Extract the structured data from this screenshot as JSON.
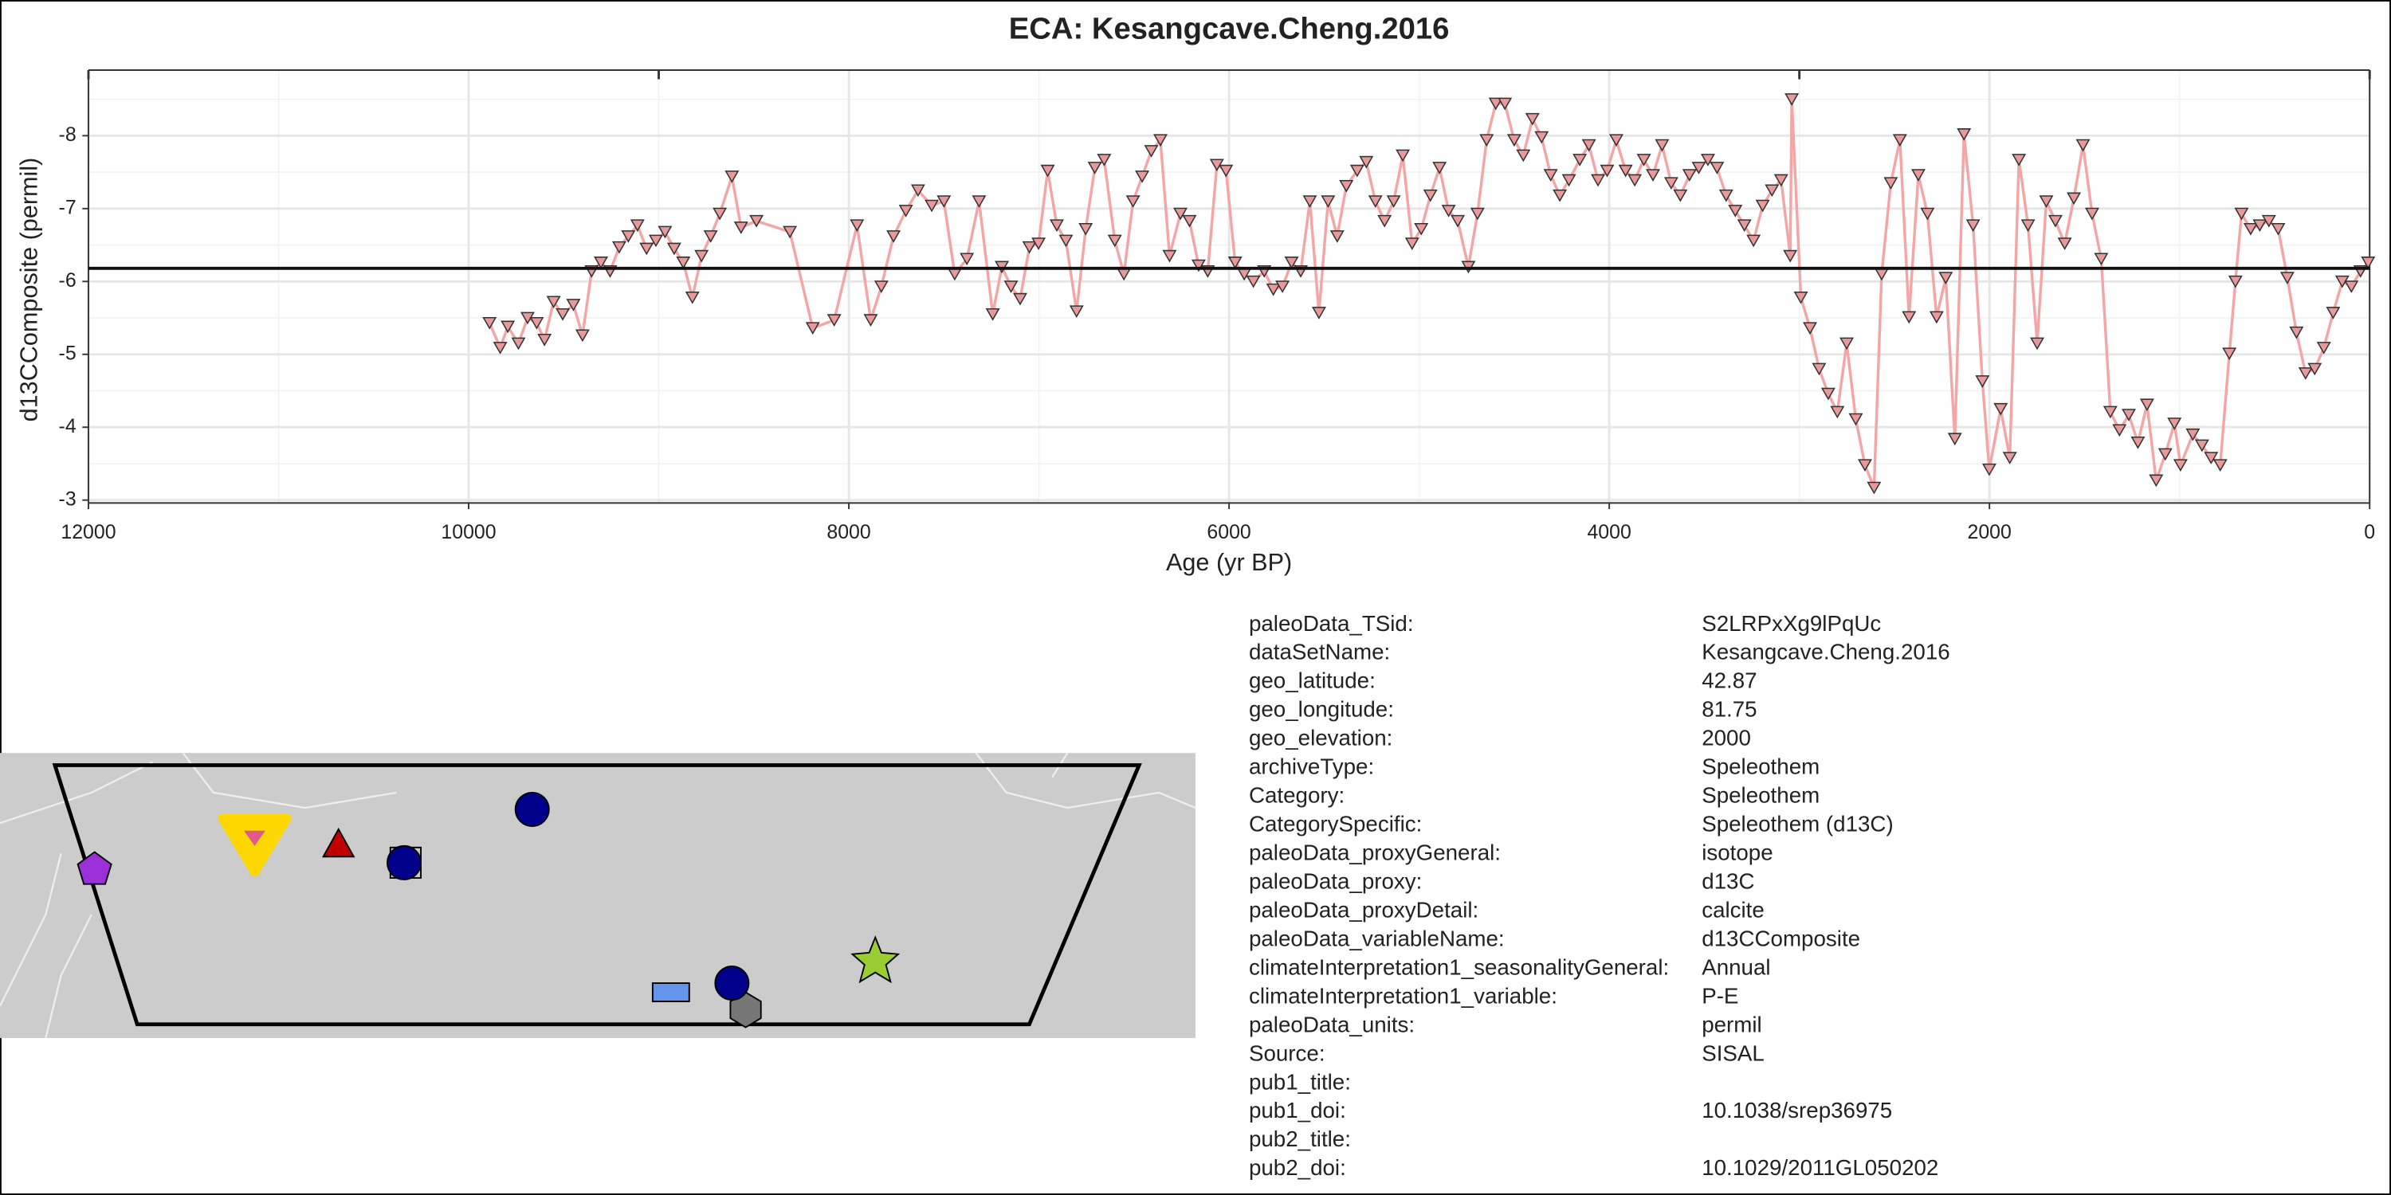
{
  "chart_data": {
    "type": "line",
    "title": "ECA: Kesangcave.Cheng.2016",
    "xlabel": "Age (yr BP)",
    "ylabel": "d13CComposite (permil)",
    "x": [
      9890,
      9834,
      9794,
      9738,
      9690,
      9642,
      9601,
      9553,
      9505,
      9449,
      9401,
      9353,
      9304,
      9256,
      9208,
      9160,
      9112,
      9064,
      9015,
      8967,
      8919,
      8871,
      8823,
      8775,
      8727,
      8679,
      8615,
      8567,
      8486,
      8310,
      8190,
      8077,
      7957,
      7885,
      7829,
      7765,
      7700,
      7636,
      7564,
      7500,
      7443,
      7379,
      7315,
      7243,
      7195,
      7147,
      7099,
      7050,
      7002,
      6954,
      6906,
      6858,
      6802,
      6754,
      6706,
      6657,
      6601,
      6553,
      6505,
      6457,
      6409,
      6361,
      6313,
      6256,
      6208,
      6160,
      6112,
      6064,
      6016,
      5968,
      5920,
      5872,
      5815,
      5767,
      5719,
      5671,
      5623,
      5575,
      5527,
      5479,
      5431,
      5383,
      5326,
      5278,
      5230,
      5182,
      5134,
      5086,
      5037,
      4989,
      4941,
      4893,
      4845,
      4797,
      4741,
      4693,
      4645,
      4597,
      4549,
      4500,
      4452,
      4404,
      4356,
      4308,
      4260,
      4212,
      4155,
      4107,
      4059,
      4011,
      3963,
      3914,
      3866,
      3818,
      3770,
      3722,
      3674,
      3626,
      3578,
      3529,
      3481,
      3433,
      3385,
      3337,
      3289,
      3241,
      3193,
      3144,
      3096,
      3048,
      3040,
      2992,
      2944,
      2896,
      2848,
      2800,
      2751,
      2703,
      2655,
      2607,
      2567,
      2519,
      2471,
      2423,
      2374,
      2326,
      2278,
      2230,
      2182,
      2134,
      2086,
      2037,
      2001,
      1941,
      1893,
      1845,
      1797,
      1749,
      1701,
      1653,
      1604,
      1556,
      1508,
      1460,
      1412,
      1364,
      1316,
      1267,
      1219,
      1171,
      1123,
      1075,
      1027,
      995,
      930,
      882,
      834,
      786,
      738,
      706,
      674,
      626,
      578,
      530,
      481,
      433,
      385,
      337,
      289,
      241,
      192,
      144,
      96,
      48,
      8
    ],
    "series": [
      {
        "color": "#f4a6a6",
        "marker_color": "#e89a9a",
        "values": [
          -5.43,
          -5.09,
          -5.38,
          -5.15,
          -5.5,
          -5.43,
          -5.2,
          -5.72,
          -5.55,
          -5.68,
          -5.26,
          -6.14,
          -6.26,
          -6.14,
          -6.47,
          -6.62,
          -6.77,
          -6.45,
          -6.56,
          -6.68,
          -6.45,
          -6.26,
          -5.78,
          -6.35,
          -6.62,
          -6.93,
          -7.44,
          -6.74,
          -6.83,
          -6.68,
          -5.36,
          -5.47,
          -6.77,
          -5.47,
          -5.93,
          -6.62,
          -6.97,
          -7.25,
          -7.04,
          -7.1,
          -6.1,
          -6.31,
          -7.1,
          -5.55,
          -6.2,
          -5.93,
          -5.76,
          -6.47,
          -6.52,
          -7.52,
          -6.77,
          -6.56,
          -5.59,
          -6.72,
          -7.56,
          -7.67,
          -6.56,
          -6.1,
          -7.1,
          -7.44,
          -7.79,
          -7.94,
          -6.35,
          -6.93,
          -6.83,
          -6.22,
          -6.14,
          -7.6,
          -7.52,
          -6.26,
          -6.1,
          -6.0,
          -6.14,
          -5.89,
          -5.93,
          -6.26,
          -6.14,
          -7.1,
          -5.57,
          -7.1,
          -6.62,
          -7.31,
          -7.52,
          -7.64,
          -7.1,
          -6.83,
          -7.1,
          -7.73,
          -6.52,
          -6.72,
          -7.18,
          -7.56,
          -6.97,
          -6.83,
          -6.2,
          -6.93,
          -7.94,
          -8.44,
          -8.44,
          -7.94,
          -7.73,
          -8.23,
          -7.98,
          -7.46,
          -7.18,
          -7.39,
          -7.67,
          -7.87,
          -7.39,
          -7.52,
          -7.94,
          -7.52,
          -7.39,
          -7.67,
          -7.46,
          -7.87,
          -7.35,
          -7.18,
          -7.46,
          -7.56,
          -7.67,
          -7.56,
          -7.18,
          -6.97,
          -6.77,
          -6.56,
          -7.04,
          -7.25,
          -7.39,
          -6.35,
          -8.5,
          -5.78,
          -5.36,
          -4.8,
          -4.46,
          -4.21,
          -5.15,
          -4.11,
          -3.48,
          -3.17,
          -6.1,
          -7.35,
          -7.94,
          -5.51,
          -7.46,
          -6.93,
          -5.51,
          -6.05,
          -3.84,
          -8.02,
          -6.77,
          -4.63,
          -3.42,
          -4.25,
          -3.58,
          -7.67,
          -6.77,
          -5.15,
          -7.1,
          -6.83,
          -6.52,
          -7.14,
          -7.87,
          -6.93,
          -6.31,
          -4.21,
          -3.96,
          -4.17,
          -3.79,
          -4.31,
          -3.27,
          -3.63,
          -4.05,
          -3.48,
          -3.9,
          -3.75,
          -3.58,
          -3.48,
          -5.01,
          -6.0,
          -6.93,
          -6.72,
          -6.77,
          -6.83,
          -6.72,
          -6.05,
          -5.3,
          -4.74,
          -4.8,
          -5.09,
          -5.57,
          -6.0,
          -5.93,
          -6.14,
          -6.26
        ]
      }
    ],
    "xlim": [
      12000,
      0
    ],
    "xticks": [
      12000,
      10000,
      8000,
      6000,
      4000,
      2000,
      0
    ],
    "x_minor_ticks": [
      11000,
      9000,
      7000,
      5000,
      3000,
      1000
    ],
    "top_ticks": [
      12000,
      9000,
      3000,
      0
    ],
    "ylim": [
      -2.96,
      -8.9
    ],
    "yticks": [
      -8,
      -7,
      -6,
      -5,
      -4,
      -3
    ],
    "y_minor_ticks": [
      -8.5,
      -7.5,
      -6.5,
      -5.5,
      -4.5,
      -3.5
    ],
    "hline": -6.18,
    "grid": true
  },
  "metadata": [
    [
      "paleoData_TSid:",
      "S2LRPxXg9lPqUc"
    ],
    [
      "dataSetName:",
      "Kesangcave.Cheng.2016"
    ],
    [
      "geo_latitude:",
      "42.87"
    ],
    [
      "geo_longitude:",
      "81.75"
    ],
    [
      "geo_elevation:",
      "2000"
    ],
    [
      "archiveType:",
      "Speleothem"
    ],
    [
      "Category:",
      "Speleothem"
    ],
    [
      "CategorySpecific:",
      "Speleothem (d13C)"
    ],
    [
      "paleoData_proxyGeneral:",
      "isotope"
    ],
    [
      "paleoData_proxy:",
      "d13C"
    ],
    [
      "paleoData_proxyDetail:",
      "calcite"
    ],
    [
      "paleoData_variableName:",
      "d13CComposite"
    ],
    [
      "climateInterpretation1_seasonalityGeneral:",
      "Annual"
    ],
    [
      "climateInterpretation1_variable:",
      "P-E"
    ],
    [
      "paleoData_units:",
      "permil"
    ],
    [
      "Source:",
      "SISAL"
    ],
    [
      "pub1_title:"
    ],
    [
      "pub1_doi:",
      "10.1038/srep36975"
    ],
    [
      "pub2_title:"
    ],
    [
      "pub2_doi:",
      "10.1029/2011GL050202"
    ]
  ]
}
